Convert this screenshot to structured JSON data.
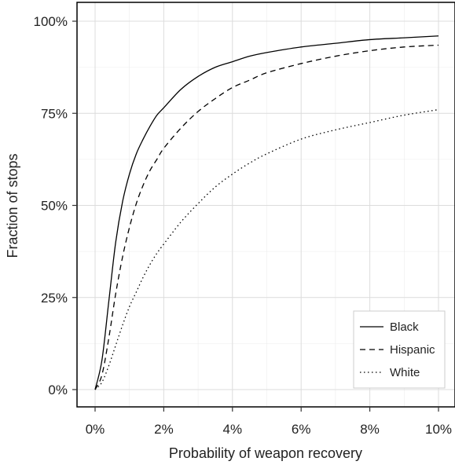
{
  "chart_data": {
    "type": "line",
    "xlabel": "Probability of weapon recovery",
    "ylabel": "Fraction of stops",
    "xlim": [
      0,
      0.1
    ],
    "ylim": [
      0,
      1.0
    ],
    "x_ticks": [
      0,
      0.02,
      0.04,
      0.06,
      0.08,
      0.1
    ],
    "x_tick_labels": [
      "0%",
      "2%",
      "4%",
      "6%",
      "8%",
      "10%"
    ],
    "y_ticks": [
      0,
      0.25,
      0.5,
      0.75,
      1.0
    ],
    "y_tick_labels": [
      "0%",
      "25%",
      "50%",
      "75%",
      "100%"
    ],
    "grid": true,
    "legend_position": "bottom-right",
    "series": [
      {
        "name": "Black",
        "line_style": "solid",
        "x": [
          0,
          0.002,
          0.004,
          0.006,
          0.008,
          0.01,
          0.012,
          0.014,
          0.016,
          0.018,
          0.02,
          0.025,
          0.03,
          0.035,
          0.04,
          0.045,
          0.05,
          0.06,
          0.07,
          0.08,
          0.09,
          0.1
        ],
        "y": [
          0,
          0.08,
          0.24,
          0.4,
          0.51,
          0.585,
          0.64,
          0.68,
          0.715,
          0.745,
          0.765,
          0.815,
          0.85,
          0.875,
          0.89,
          0.905,
          0.915,
          0.93,
          0.94,
          0.95,
          0.955,
          0.96
        ]
      },
      {
        "name": "Hispanic",
        "line_style": "dashed",
        "x": [
          0,
          0.002,
          0.004,
          0.006,
          0.008,
          0.01,
          0.012,
          0.014,
          0.016,
          0.018,
          0.02,
          0.025,
          0.03,
          0.035,
          0.04,
          0.045,
          0.05,
          0.06,
          0.07,
          0.08,
          0.09,
          0.1
        ],
        "y": [
          0,
          0.04,
          0.14,
          0.26,
          0.36,
          0.44,
          0.505,
          0.555,
          0.595,
          0.625,
          0.655,
          0.71,
          0.755,
          0.79,
          0.82,
          0.84,
          0.86,
          0.885,
          0.905,
          0.92,
          0.93,
          0.935
        ]
      },
      {
        "name": "White",
        "line_style": "dotted",
        "x": [
          0,
          0.002,
          0.004,
          0.006,
          0.008,
          0.01,
          0.012,
          0.014,
          0.016,
          0.018,
          0.02,
          0.025,
          0.03,
          0.035,
          0.04,
          0.045,
          0.05,
          0.06,
          0.07,
          0.08,
          0.09,
          0.1
        ],
        "y": [
          0,
          0.02,
          0.065,
          0.12,
          0.175,
          0.225,
          0.265,
          0.305,
          0.34,
          0.37,
          0.395,
          0.455,
          0.505,
          0.55,
          0.585,
          0.615,
          0.64,
          0.68,
          0.705,
          0.725,
          0.745,
          0.76
        ]
      }
    ]
  }
}
